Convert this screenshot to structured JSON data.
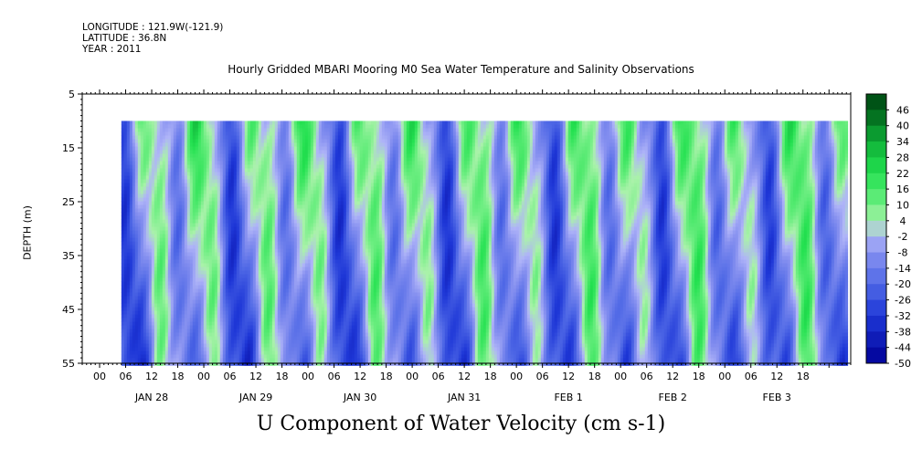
{
  "header": {
    "longitude": "LONGITUDE : 121.9W(-121.9)",
    "latitude": "LATITUDE : 36.8N",
    "year": "YEAR : 2011"
  },
  "chart_data": {
    "type": "heatmap",
    "title": "Hourly Gridded MBARI Mooring M0 Sea Water Temperature and Salinity Observations",
    "xlabel": "U Component of Water Velocity (cm s-1)",
    "ylabel": "DEPTH (m)",
    "y_ticks": [
      5,
      15,
      25,
      35,
      45,
      55
    ],
    "ylim": [
      55,
      5
    ],
    "data_depth_range": [
      10,
      55
    ],
    "x_hour_labels": [
      "00",
      "06",
      "12",
      "18",
      "00",
      "06",
      "12",
      "18",
      "00",
      "06",
      "12",
      "18",
      "00",
      "06",
      "12",
      "18",
      "00",
      "06",
      "12",
      "18",
      "00",
      "06",
      "12",
      "18",
      "00",
      "06",
      "12",
      "18"
    ],
    "x_day_labels": [
      "JAN 28",
      "JAN 29",
      "JAN 30",
      "JAN 31",
      "FEB  1",
      "FEB  2",
      "FEB  3"
    ],
    "xlim_hours": [
      "2011-01-27 20:00",
      "2011-02-04 05:00"
    ],
    "data_time_range": [
      "2011-01-28 05:00",
      "2011-02-04 04:00"
    ],
    "colorbar": {
      "levels": [
        -50,
        -44,
        -38,
        -32,
        -26,
        -20,
        -14,
        -8,
        -2,
        4,
        10,
        16,
        22,
        28,
        34,
        40,
        46
      ],
      "labels": [
        "46",
        "40",
        "34",
        "28",
        "22",
        "16",
        "10",
        "4",
        "-2",
        "-8",
        "-14",
        "-20",
        "-26",
        "-32",
        "-38",
        "-44",
        "-50"
      ]
    },
    "grid": false,
    "colors": {
      "negative_strong": "#0000aa",
      "negative_mid": "#5566e0",
      "negative_weak": "#aab0f5",
      "positive_weak": "#aaf0aa",
      "positive_mid": "#22e055",
      "positive_strong": "#005c1a"
    }
  }
}
